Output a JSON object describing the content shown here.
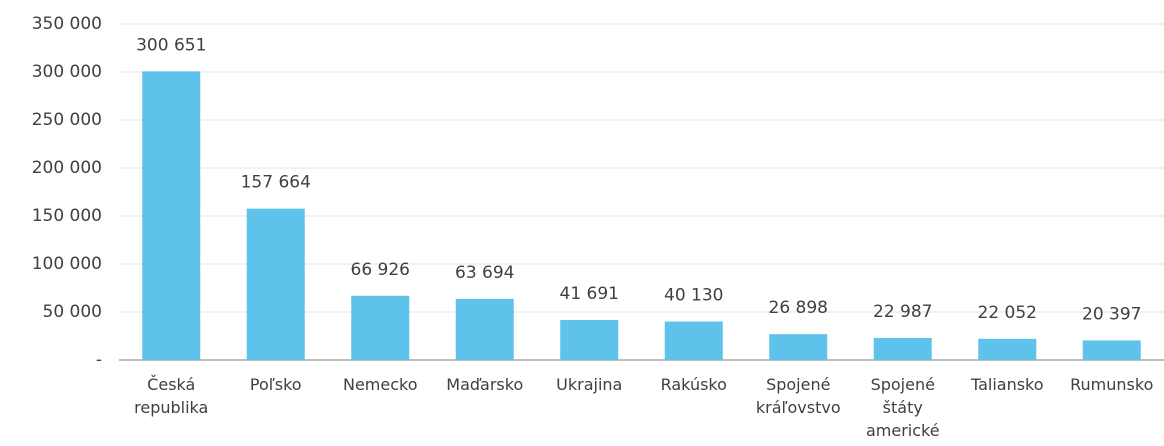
{
  "chart_data": {
    "type": "bar",
    "categories": [
      "Česká republika",
      "Poľsko",
      "Nemecko",
      "Maďarsko",
      "Ukrajina",
      "Rakúsko",
      "Spojené kráľovstvo",
      "Spojené štáty americké",
      "Taliansko",
      "Rumunsko"
    ],
    "values": [
      300651,
      157664,
      66926,
      63694,
      41691,
      40130,
      26898,
      22987,
      22052,
      20397
    ],
    "value_labels": [
      "300 651",
      "157 664",
      "66 926",
      "63 694",
      "41 691",
      "40 130",
      "26 898",
      "22 987",
      "22 052",
      "20 397"
    ],
    "color": "#5ec2ea",
    "ylim": [
      0,
      350000
    ],
    "yticks": [
      {
        "value": 0,
        "label": "-"
      },
      {
        "value": 50000,
        "label": "50 000"
      },
      {
        "value": 100000,
        "label": "100 000"
      },
      {
        "value": 150000,
        "label": "150 000"
      },
      {
        "value": 200000,
        "label": "200 000"
      },
      {
        "value": 250000,
        "label": "250 000"
      },
      {
        "value": 300000,
        "label": "300 000"
      },
      {
        "value": 350000,
        "label": "350 000"
      }
    ],
    "grid": true
  }
}
